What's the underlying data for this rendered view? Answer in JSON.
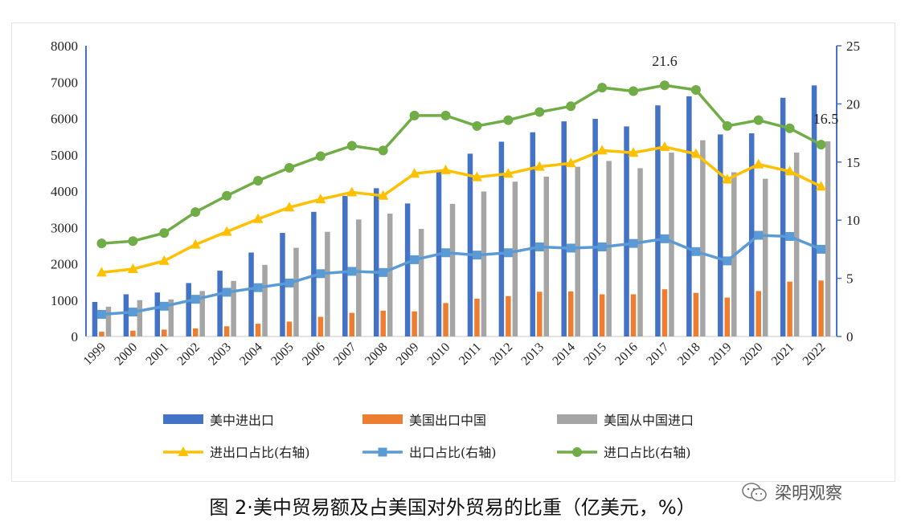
{
  "chart_data": {
    "type": "bar+line",
    "title": "",
    "categories": [
      "1999",
      "2000",
      "2001",
      "2002",
      "2003",
      "2004",
      "2005",
      "2006",
      "2007",
      "2008",
      "2009",
      "2010",
      "2011",
      "2012",
      "2013",
      "2014",
      "2015",
      "2016",
      "2017",
      "2018",
      "2019",
      "2020",
      "2021",
      "2022"
    ],
    "left_axis": {
      "ylim": [
        0,
        8000
      ],
      "ticks": [
        "0",
        "1000",
        "2000",
        "3000",
        "4000",
        "5000",
        "6000",
        "7000",
        "8000"
      ]
    },
    "right_axis": {
      "ylim": [
        0,
        25
      ],
      "ticks": [
        "0",
        "5",
        "10",
        "15",
        "20",
        "25"
      ]
    },
    "bar_series": [
      {
        "name": "美中进出口",
        "color": "#4472C4",
        "values": [
          950,
          1160,
          1210,
          1470,
          1810,
          2310,
          2850,
          3430,
          3870,
          4080,
          3660,
          4570,
          5030,
          5360,
          5620,
          5920,
          5990,
          5780,
          6360,
          6610,
          5560,
          5590,
          6570,
          6910
        ]
      },
      {
        "name": "美国出口中国",
        "color": "#ED7D31",
        "values": [
          130,
          160,
          190,
          220,
          280,
          350,
          410,
          540,
          650,
          710,
          690,
          920,
          1040,
          1110,
          1230,
          1240,
          1160,
          1160,
          1300,
          1200,
          1070,
          1250,
          1510,
          1540
        ]
      },
      {
        "name": "美国从中国进口",
        "color": "#A5A5A5",
        "values": [
          820,
          1000,
          1020,
          1250,
          1530,
          1970,
          2440,
          2880,
          3220,
          3380,
          2960,
          3650,
          3990,
          4260,
          4400,
          4670,
          4830,
          4630,
          5060,
          5400,
          4520,
          4340,
          5060,
          5370
        ]
      }
    ],
    "line_series": [
      {
        "name": "进出口占比(右轴)",
        "color": "#FFC000",
        "marker": "triangle",
        "values": [
          5.5,
          5.8,
          6.5,
          7.9,
          9.0,
          10.1,
          11.1,
          11.8,
          12.4,
          12.1,
          14.0,
          14.3,
          13.7,
          14.0,
          14.6,
          14.9,
          16.0,
          15.8,
          16.3,
          15.7,
          13.5,
          14.8,
          14.2,
          12.9
        ]
      },
      {
        "name": "出口占比(右轴)",
        "color": "#5B9BD5",
        "marker": "square",
        "values": [
          1.9,
          2.1,
          2.6,
          3.2,
          3.8,
          4.2,
          4.6,
          5.4,
          5.6,
          5.5,
          6.6,
          7.2,
          7.0,
          7.2,
          7.7,
          7.6,
          7.7,
          8.0,
          8.4,
          7.3,
          6.5,
          8.7,
          8.6,
          7.5
        ]
      },
      {
        "name": "进口占比(右轴)",
        "color": "#70AD47",
        "marker": "circle",
        "values": [
          8.0,
          8.2,
          8.9,
          10.7,
          12.1,
          13.4,
          14.5,
          15.5,
          16.4,
          16.0,
          19.0,
          19.0,
          18.1,
          18.6,
          19.3,
          19.8,
          21.4,
          21.1,
          21.6,
          21.2,
          18.1,
          18.6,
          17.9,
          16.5
        ]
      }
    ],
    "annotations": [
      {
        "text": "21.6",
        "series": "进口占比(右轴)",
        "category": "2017"
      },
      {
        "text": "16.5",
        "series": "进口占比(右轴)",
        "category": "2022"
      }
    ],
    "legend_position": "bottom"
  },
  "caption": "图 2·美中贸易额及占美国对外贸易的比重（亿美元，%）",
  "watermark": {
    "text": "梁明观察",
    "icon": "wechat-logo-icon"
  }
}
